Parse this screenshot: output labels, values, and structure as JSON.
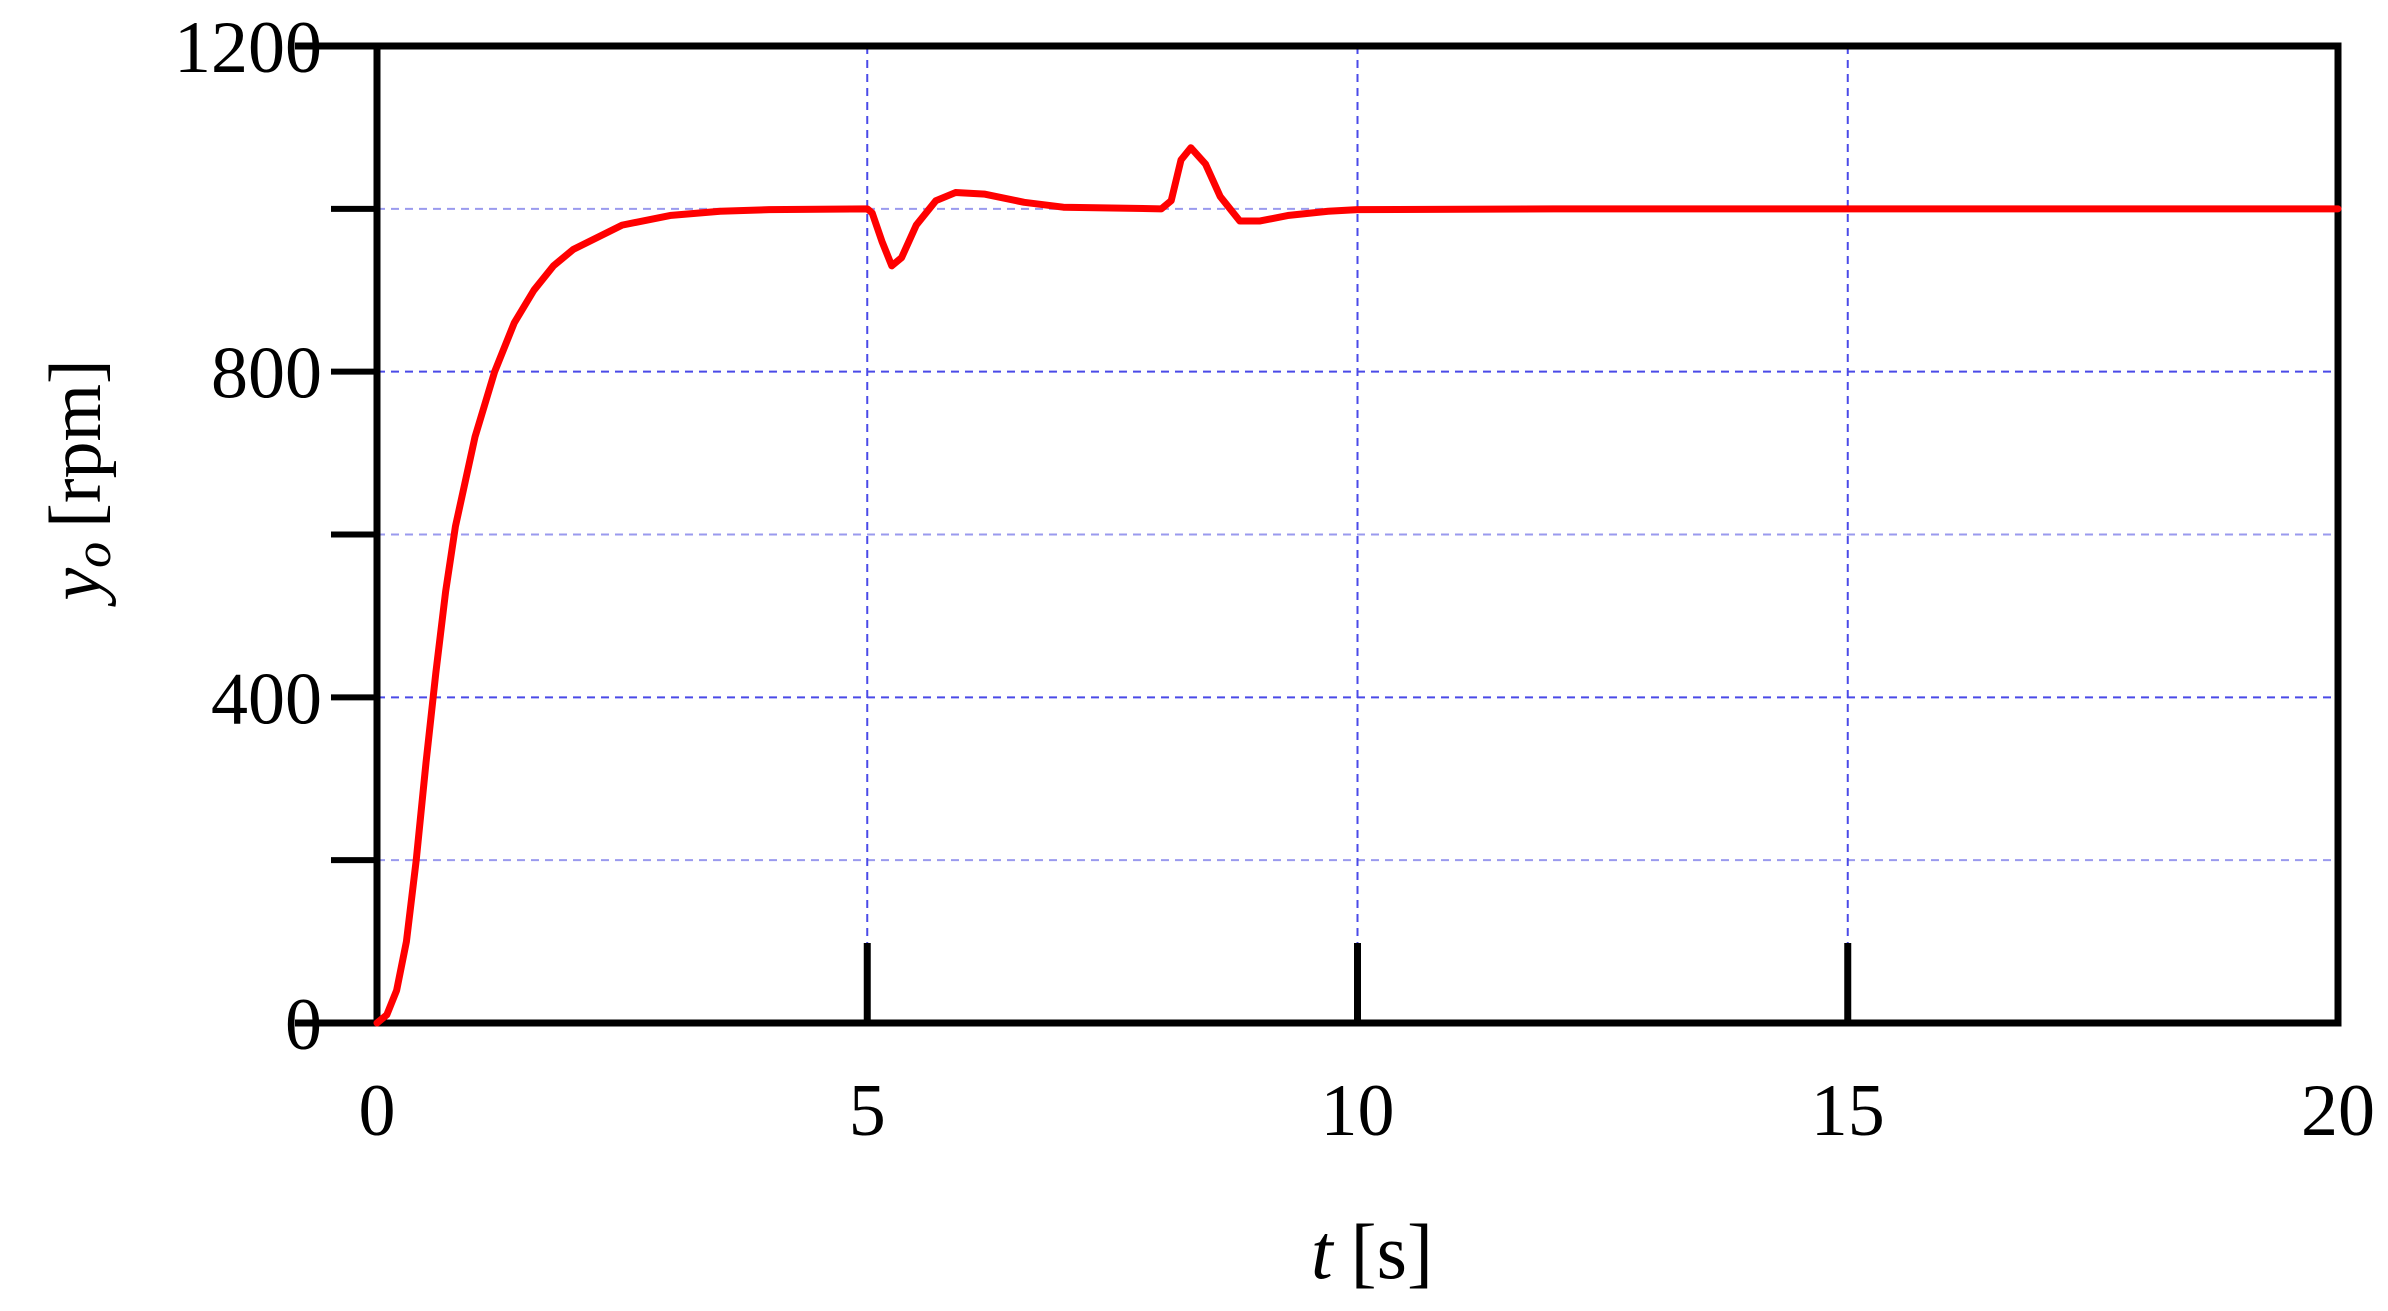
{
  "chart_data": {
    "type": "line",
    "xlabel": {
      "symbol": "t",
      "unit": "[s]"
    },
    "ylabel": {
      "symbol": "y",
      "subscript": "o",
      "unit": "[rpm]"
    },
    "xlim": [
      0,
      20
    ],
    "ylim": [
      0,
      1200
    ],
    "xticks": [
      0,
      5,
      10,
      15,
      20
    ],
    "yticks": [
      0,
      400,
      800,
      1200
    ],
    "yminor": [
      200,
      600,
      1000
    ],
    "grid": true,
    "series": [
      {
        "name": "y_o",
        "color": "#ff0000",
        "x": [
          0,
          0.1,
          0.2,
          0.3,
          0.4,
          0.5,
          0.6,
          0.7,
          0.8,
          1.0,
          1.2,
          1.4,
          1.6,
          1.8,
          2.0,
          2.5,
          3,
          3.5,
          4,
          5,
          5.05,
          5.15,
          5.25,
          5.35,
          5.5,
          5.7,
          5.9,
          6.2,
          6.6,
          7,
          8,
          8.1,
          8.2,
          8.3,
          8.45,
          8.6,
          8.8,
          9,
          9.3,
          9.7,
          10,
          12,
          15,
          20
        ],
        "values": [
          0,
          10,
          40,
          100,
          200,
          320,
          430,
          530,
          610,
          720,
          800,
          860,
          900,
          930,
          950,
          980,
          992,
          997,
          999,
          1000,
          995,
          960,
          930,
          940,
          980,
          1010,
          1020,
          1018,
          1008,
          1002,
          1000,
          1010,
          1060,
          1075,
          1055,
          1015,
          985,
          985,
          992,
          997,
          999,
          1000,
          1000,
          1000
        ]
      }
    ]
  }
}
